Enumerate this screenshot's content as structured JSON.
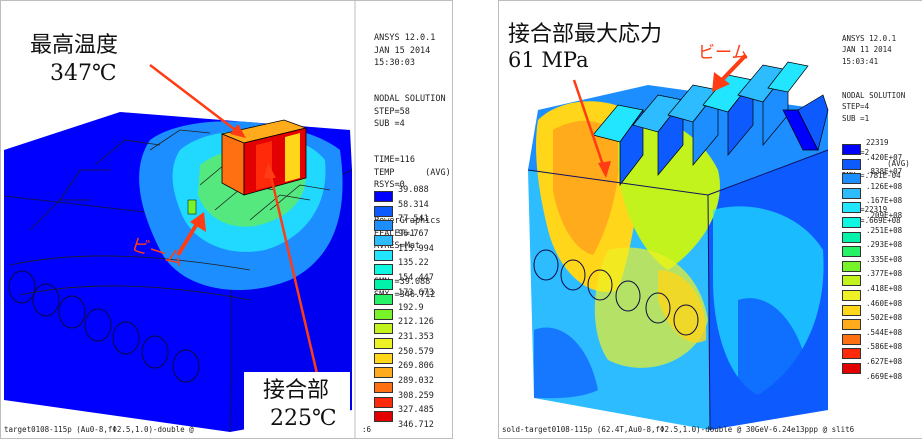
{
  "colors": {
    "c1": "#0000ff",
    "c2": "#0d5bff",
    "c3": "#1c8eff",
    "c4": "#2cbcff",
    "c5": "#22e5ff",
    "c6": "#0ef7e0",
    "c7": "#00f3a8",
    "c8": "#27f164",
    "c9": "#78f32a",
    "c10": "#c3f31d",
    "c11": "#eef125",
    "c12": "#ffd61a",
    "c13": "#ffab1b",
    "c14": "#ff7012",
    "c15": "#ff2a0a",
    "c16": "#e20000",
    "arrow": "#ff3c14"
  },
  "left": {
    "title_jp": "最高温度",
    "max_temp": "347℃",
    "joint_jp": "接合部",
    "joint_temp": "225℃",
    "beam_jp": "ビーム",
    "info": [
      "ANSYS 12.0.1",
      "JAN 15 2014",
      "15:30:03",
      "NODAL SOLUTION",
      "STEP=58",
      "SUB =4",
      "TIME=116",
      "TEMP      (AVG)",
      "RSYS=0",
      "PowerGraphics",
      "EFACET=1",
      "AVRES=Mat",
      "SMN =39.088",
      "SMX =346.712"
    ],
    "legend": [
      "39.088",
      "58.314",
      "77.541",
      "96.767",
      "115.994",
      "135.22",
      "154.447",
      "173.673",
      "192.9",
      "212.126",
      "231.353",
      "250.579",
      "269.806",
      "289.032",
      "308.259",
      "327.485",
      "346.712"
    ],
    "caption": "target0108-115p (Au0-8,fΦ2.5,1.0)-double @",
    "caption_tail": ":6"
  },
  "right": {
    "title_jp": "接合部最大応力",
    "stress": "61 MPa",
    "beam_jp": "ビーム",
    "info": [
      "ANSYS 12.0.1",
      "JAN 11 2014",
      "15:03:41",
      "NODAL SOLUTION",
      "STEP=4",
      "SUB =1",
      "TIME=2",
      "SEQV      (AVG)",
      "DMX =.781E-04",
      "SMN =22319",
      "SMX =.669E+08"
    ],
    "legend": [
      "22319",
      ".420E+07",
      ".838E+07",
      ".126E+08",
      ".167E+08",
      ".209E+08",
      ".251E+08",
      ".293E+08",
      ".335E+08",
      ".377E+08",
      ".418E+08",
      ".460E+08",
      ".502E+08",
      ".544E+08",
      ".586E+08",
      ".627E+08",
      ".669E+08"
    ],
    "caption": "sold-target0108-115p (62.4T,Au0-8,fΦ2.5,1.0)-double @ 30GeV-6.24e13ppp @ slit6"
  }
}
